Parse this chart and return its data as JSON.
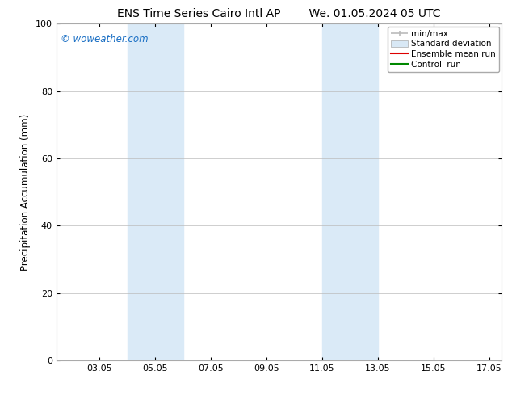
{
  "title_left": "ENS Time Series Cairo Intl AP",
  "title_right": "We. 01.05.2024 05 UTC",
  "ylabel": "Precipitation Accumulation (mm)",
  "ylim": [
    0,
    100
  ],
  "yticks": [
    0,
    20,
    40,
    60,
    80,
    100
  ],
  "xlim_start": 1.5,
  "xlim_end": 17.5,
  "xticks": [
    3.05,
    5.05,
    7.05,
    9.05,
    11.05,
    13.05,
    15.05,
    17.05
  ],
  "xtick_labels": [
    "03.05",
    "05.05",
    "07.05",
    "09.05",
    "11.05",
    "13.05",
    "15.05",
    "17.05"
  ],
  "shaded_regions": [
    {
      "x_start": 4.05,
      "x_end": 6.05,
      "color": "#daeaf7",
      "alpha": 1.0
    },
    {
      "x_start": 11.05,
      "x_end": 13.05,
      "color": "#daeaf7",
      "alpha": 1.0
    }
  ],
  "watermark_text": "© woweather.com",
  "watermark_color": "#1a6fc4",
  "legend_items": [
    {
      "label": "min/max",
      "color": "#bbbbbb",
      "lw": 1.2,
      "type": "line_caps"
    },
    {
      "label": "Standard deviation",
      "color": "#d8e8f5",
      "lw": 8,
      "type": "patch"
    },
    {
      "label": "Ensemble mean run",
      "color": "#dd0000",
      "lw": 1.5,
      "type": "line"
    },
    {
      "label": "Controll run",
      "color": "#008800",
      "lw": 1.5,
      "type": "line"
    }
  ],
  "background_color": "#ffffff",
  "plot_bg_color": "#ffffff",
  "grid_color": "#bbbbbb",
  "title_fontsize": 10,
  "tick_fontsize": 8,
  "ylabel_fontsize": 8.5,
  "watermark_fontsize": 8.5,
  "legend_fontsize": 7.5
}
